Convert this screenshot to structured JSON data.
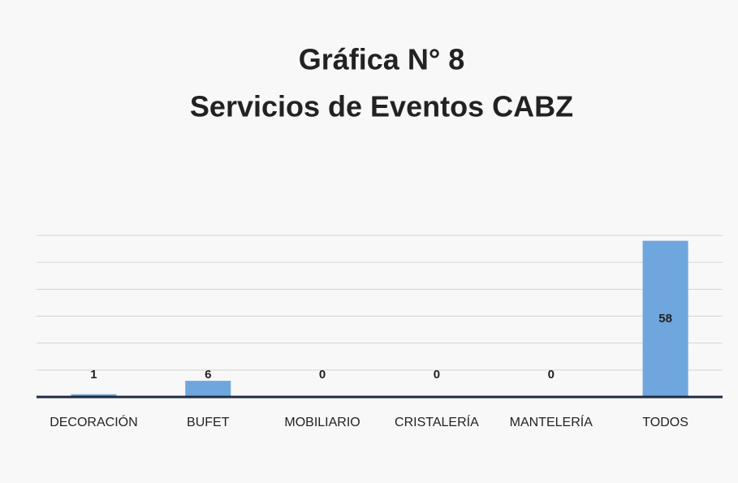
{
  "chart_data": {
    "type": "bar",
    "title": [
      "Gráfica N° 8",
      "Servicios de Eventos CABZ"
    ],
    "categories": [
      "DECORACIÓN",
      "BUFET",
      "MOBILIARIO",
      "CRISTALERÍA",
      "MANTELERÍA",
      "TODOS"
    ],
    "values": [
      1,
      6,
      0,
      0,
      0,
      58
    ],
    "color": "#6fa6dd",
    "ylim": [
      0,
      60
    ],
    "yticks": [
      0,
      10,
      20,
      30,
      40,
      50,
      60
    ],
    "grid": true
  }
}
